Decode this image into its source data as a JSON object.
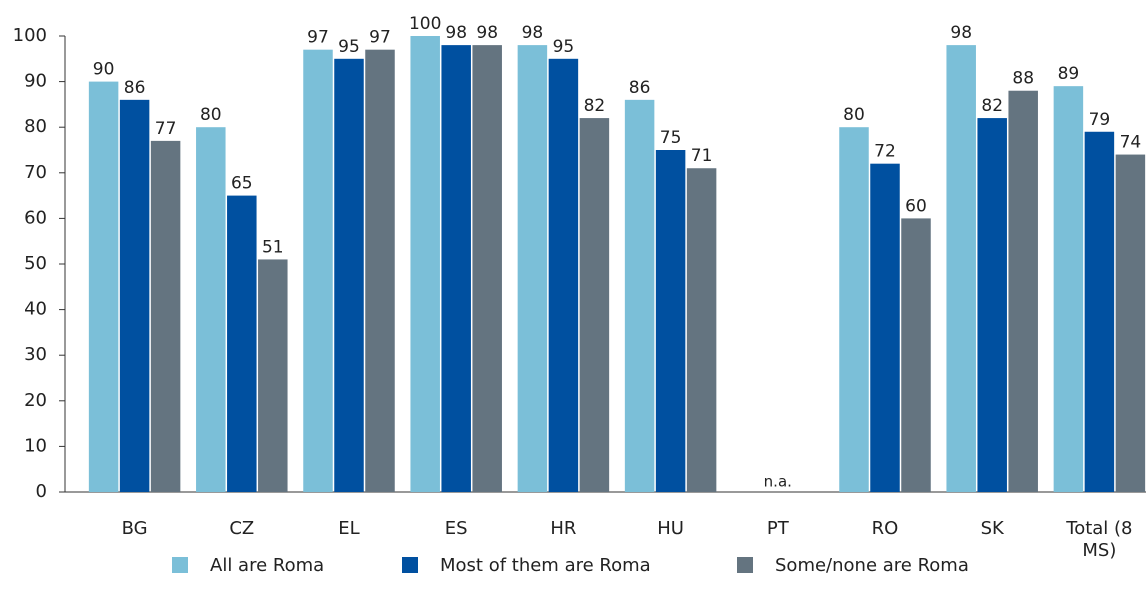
{
  "chart_data": {
    "type": "bar",
    "categories": [
      "BG",
      "CZ",
      "EL",
      "ES",
      "HR",
      "HU",
      "PT",
      "RO",
      "SK",
      "Total (8 MS)"
    ],
    "series": [
      {
        "name": "All are Roma",
        "color": "#7bbfd8",
        "values": [
          90,
          80,
          97,
          100,
          98,
          86,
          null,
          80,
          98,
          89
        ]
      },
      {
        "name": "Most of them are Roma",
        "color": "#0050a0",
        "values": [
          86,
          65,
          95,
          98,
          95,
          75,
          null,
          72,
          82,
          79
        ]
      },
      {
        "name": "Some/none are Roma",
        "color": "#647480",
        "values": [
          77,
          51,
          97,
          98,
          82,
          71,
          null,
          60,
          88,
          74
        ]
      }
    ],
    "annotation": "n.a.",
    "ylim": [
      0,
      100
    ],
    "yticks": [
      0,
      10,
      20,
      30,
      40,
      50,
      60,
      70,
      80,
      90,
      100
    ],
    "grid": false,
    "legend": "bottom"
  }
}
